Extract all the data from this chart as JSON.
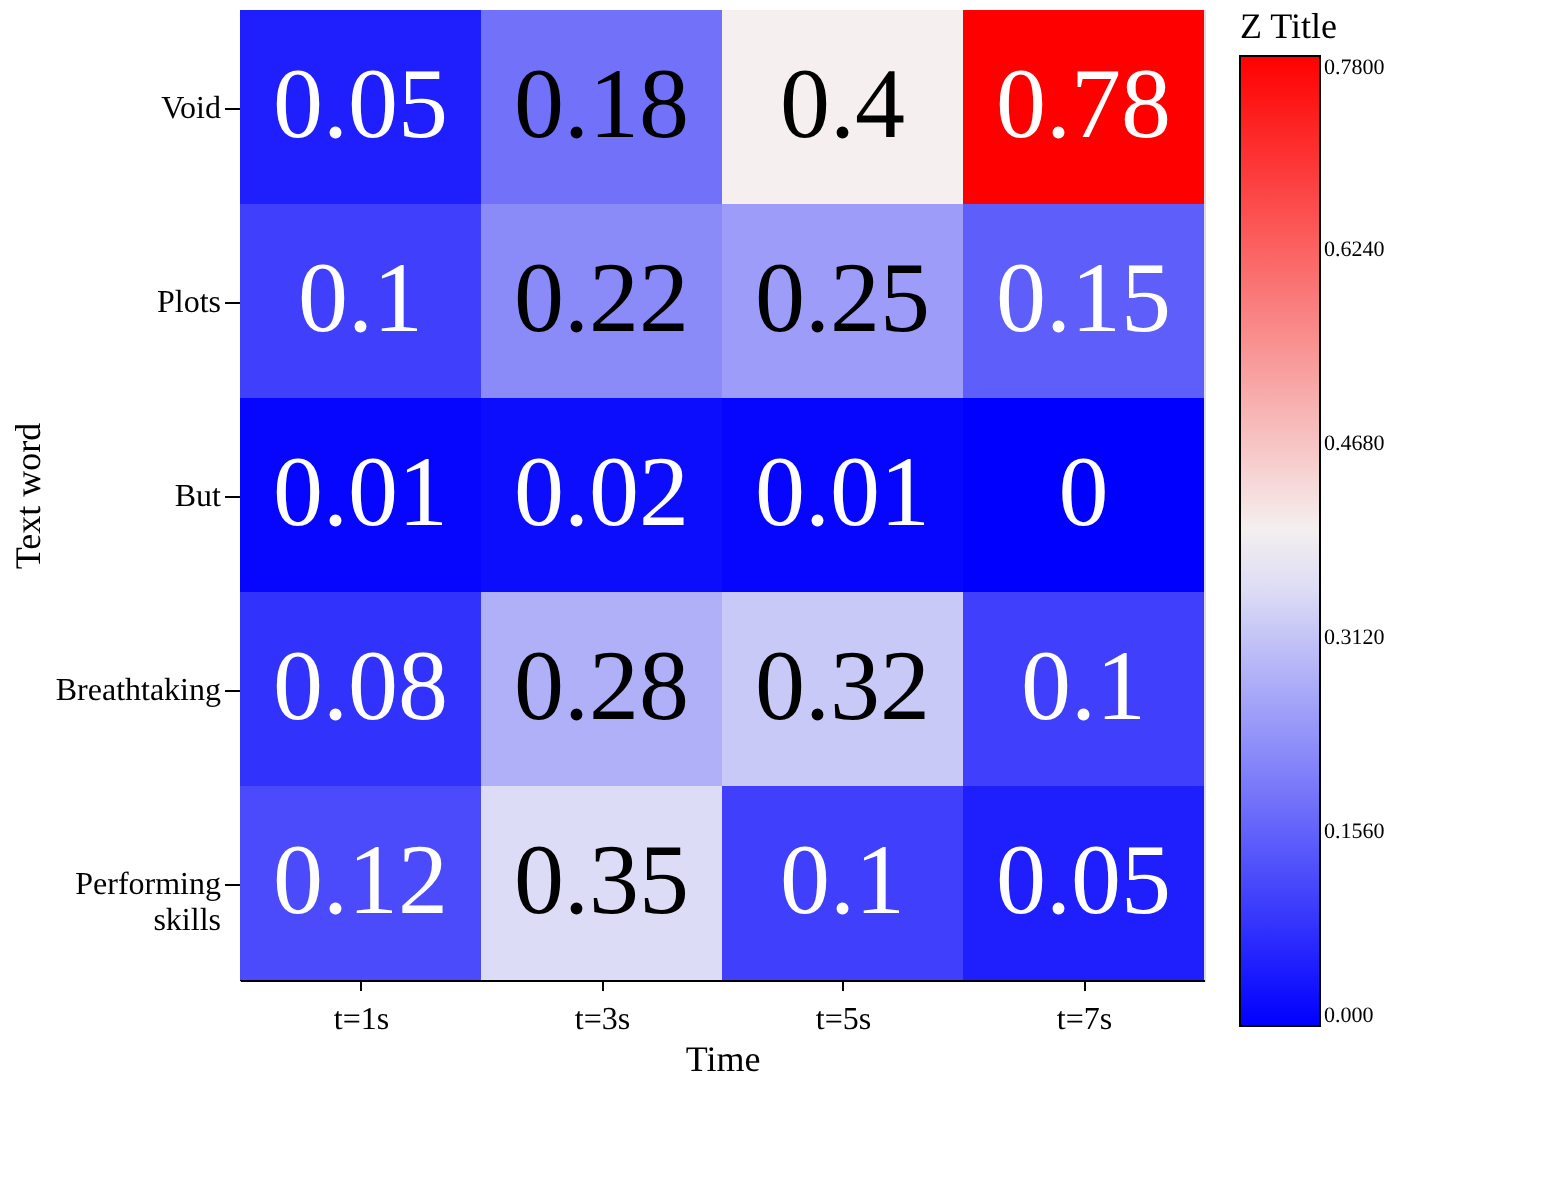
{
  "chart_data": {
    "type": "heatmap",
    "xlabel": "Time",
    "ylabel": "Text word",
    "legend_title": "Z Title",
    "categories": [
      "t=1s",
      "t=3s",
      "t=5s",
      "t=7s"
    ],
    "y_categories": [
      "Void",
      "Plots",
      "But",
      "Breathtaking",
      "Performing skills"
    ],
    "cells": [
      [
        0.05,
        0.18,
        0.4,
        0.78
      ],
      [
        0.1,
        0.22,
        0.25,
        0.15
      ],
      [
        0.01,
        0.02,
        0.01,
        0
      ],
      [
        0.08,
        0.28,
        0.32,
        0.1
      ],
      [
        0.12,
        0.35,
        0.1,
        0.05
      ]
    ],
    "data_labels": true,
    "clim": [
      0,
      0.78
    ],
    "cticks": [
      {
        "value": 0,
        "label": "0.000"
      },
      {
        "value": 0.156,
        "label": "0.1560"
      },
      {
        "value": 0.312,
        "label": "0.3120"
      },
      {
        "value": 0.468,
        "label": "0.4680"
      },
      {
        "value": 0.624,
        "label": "0.6240"
      },
      {
        "value": 0.78,
        "label": "0.7800"
      }
    ]
  }
}
